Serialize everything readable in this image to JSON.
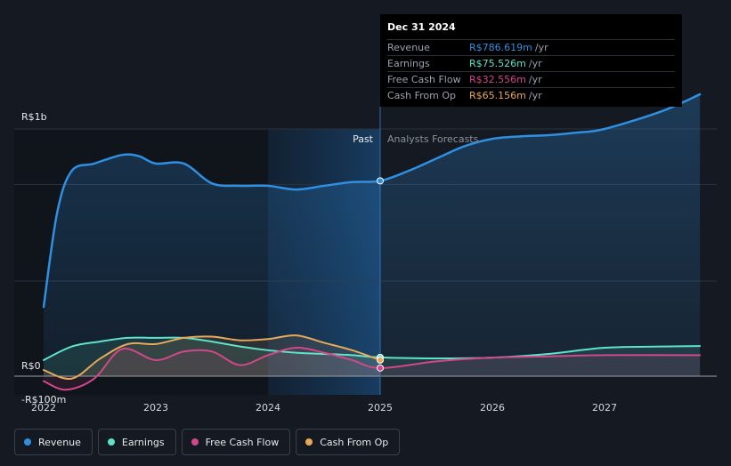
{
  "chart_data": {
    "type": "line",
    "x_start": 2021.75,
    "x_end": 2027.85,
    "ylim": [
      -0.12,
      1.2
    ],
    "y_tick_labels": [
      {
        "value": 1.0,
        "label": "R$1b"
      },
      {
        "value": 0.0,
        "label": "R$0"
      },
      {
        "value": -0.1,
        "label": "-R$100m"
      }
    ],
    "x_ticks": [
      2022,
      2023,
      2024,
      2025,
      2026,
      2027
    ],
    "x_tick_labels": [
      "2022",
      "2023",
      "2024",
      "2025",
      "2026",
      "2027"
    ],
    "divider_x": 2025.0,
    "highlight_start": 2024.0,
    "past_label": "Past",
    "forecast_label": "Analysts Forecasts",
    "series": [
      {
        "name": "Revenue",
        "color": "#2f8fe0",
        "points": [
          [
            2022.0,
            0.28
          ],
          [
            2022.12,
            0.66
          ],
          [
            2022.25,
            0.83
          ],
          [
            2022.45,
            0.86
          ],
          [
            2022.7,
            0.895
          ],
          [
            2022.85,
            0.89
          ],
          [
            2023.0,
            0.86
          ],
          [
            2023.25,
            0.86
          ],
          [
            2023.5,
            0.78
          ],
          [
            2023.75,
            0.77
          ],
          [
            2024.0,
            0.77
          ],
          [
            2024.25,
            0.755
          ],
          [
            2024.5,
            0.77
          ],
          [
            2024.75,
            0.785
          ],
          [
            2025.0,
            0.79
          ],
          [
            2025.25,
            0.83
          ],
          [
            2025.5,
            0.88
          ],
          [
            2025.75,
            0.93
          ],
          [
            2026.0,
            0.96
          ],
          [
            2026.25,
            0.97
          ],
          [
            2026.5,
            0.975
          ],
          [
            2026.75,
            0.985
          ],
          [
            2027.0,
            1.0
          ],
          [
            2027.5,
            1.07
          ],
          [
            2027.85,
            1.14
          ]
        ]
      },
      {
        "name": "Earnings",
        "color": "#5fe3c8",
        "points": [
          [
            2022.0,
            0.065
          ],
          [
            2022.25,
            0.12
          ],
          [
            2022.5,
            0.14
          ],
          [
            2022.75,
            0.155
          ],
          [
            2023.0,
            0.155
          ],
          [
            2023.25,
            0.155
          ],
          [
            2023.5,
            0.14
          ],
          [
            2023.75,
            0.12
          ],
          [
            2024.0,
            0.105
          ],
          [
            2024.25,
            0.095
          ],
          [
            2024.5,
            0.09
          ],
          [
            2024.75,
            0.085
          ],
          [
            2025.0,
            0.076
          ],
          [
            2025.5,
            0.072
          ],
          [
            2026.0,
            0.075
          ],
          [
            2026.5,
            0.09
          ],
          [
            2027.0,
            0.115
          ],
          [
            2027.5,
            0.12
          ],
          [
            2027.85,
            0.122
          ]
        ]
      },
      {
        "name": "Free Cash Flow",
        "color": "#d1488a",
        "points": [
          [
            2022.0,
            -0.02
          ],
          [
            2022.2,
            -0.055
          ],
          [
            2022.45,
            -0.01
          ],
          [
            2022.7,
            0.11
          ],
          [
            2023.0,
            0.065
          ],
          [
            2023.25,
            0.1
          ],
          [
            2023.5,
            0.1
          ],
          [
            2023.75,
            0.045
          ],
          [
            2024.0,
            0.085
          ],
          [
            2024.25,
            0.115
          ],
          [
            2024.5,
            0.095
          ],
          [
            2024.75,
            0.065
          ],
          [
            2025.0,
            0.033
          ],
          [
            2025.5,
            0.06
          ],
          [
            2026.0,
            0.075
          ],
          [
            2026.5,
            0.08
          ],
          [
            2027.0,
            0.085
          ],
          [
            2027.85,
            0.085
          ]
        ]
      },
      {
        "name": "Cash From Op",
        "color": "#e8a85a",
        "points": [
          [
            2022.0,
            0.025
          ],
          [
            2022.25,
            -0.01
          ],
          [
            2022.5,
            0.07
          ],
          [
            2022.75,
            0.13
          ],
          [
            2023.0,
            0.13
          ],
          [
            2023.25,
            0.155
          ],
          [
            2023.5,
            0.16
          ],
          [
            2023.75,
            0.145
          ],
          [
            2024.0,
            0.15
          ],
          [
            2024.25,
            0.165
          ],
          [
            2024.5,
            0.135
          ],
          [
            2024.75,
            0.105
          ],
          [
            2025.0,
            0.065
          ]
        ]
      }
    ]
  },
  "tooltip": {
    "date": "Dec 31 2024",
    "unit": "/yr",
    "rows": [
      {
        "label": "Revenue",
        "value": "R$786.619m",
        "color": "#2f8fe0"
      },
      {
        "label": "Earnings",
        "value": "R$75.526m",
        "color": "#5fe3c8"
      },
      {
        "label": "Free Cash Flow",
        "value": "R$32.556m",
        "color": "#d1488a"
      },
      {
        "label": "Cash From Op",
        "value": "R$65.156m",
        "color": "#e8a85a"
      }
    ]
  },
  "legend": [
    {
      "label": "Revenue",
      "color": "#2f8fe0"
    },
    {
      "label": "Earnings",
      "color": "#5fe3c8"
    },
    {
      "label": "Free Cash Flow",
      "color": "#d1488a"
    },
    {
      "label": "Cash From Op",
      "color": "#e8a85a"
    }
  ]
}
